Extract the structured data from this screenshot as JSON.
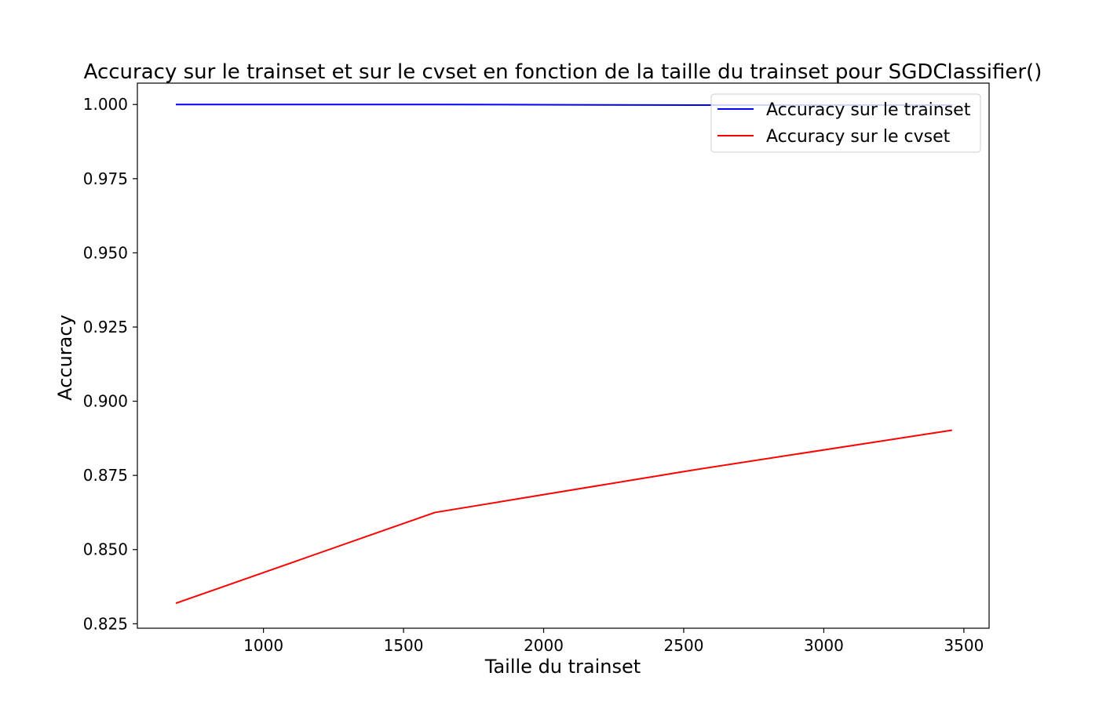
{
  "chart_data": {
    "type": "line",
    "title": "Accuracy sur le trainset et sur le cvset en fonction de la taille du trainset pour SGDClassifier()",
    "xlabel": "Taille du trainset",
    "ylabel": "Accuracy",
    "xlim": [
      550,
      3590
    ],
    "ylim": [
      0.8235,
      1.0072
    ],
    "xticks": [
      1000,
      1500,
      2000,
      2500,
      3000,
      3500
    ],
    "xtick_labels": [
      "1000",
      "1500",
      "2000",
      "2500",
      "3000",
      "3500"
    ],
    "yticks": [
      0.825,
      0.85,
      0.875,
      0.9,
      0.925,
      0.95,
      0.975,
      1.0
    ],
    "ytick_labels": [
      "0.825",
      "0.850",
      "0.875",
      "0.900",
      "0.925",
      "0.950",
      "0.975",
      "1.000"
    ],
    "grid": false,
    "legend_position": "top-right",
    "x": [
      690,
      1612,
      2533,
      3455
    ],
    "series": [
      {
        "name": "Accuracy sur le trainset",
        "color": "#0000ff",
        "values": [
          1.0,
          1.0,
          0.9998,
          0.9998
        ]
      },
      {
        "name": "Accuracy sur le cvset",
        "color": "#ff0000",
        "values": [
          0.832,
          0.8625,
          0.8768,
          0.8902
        ]
      }
    ]
  }
}
